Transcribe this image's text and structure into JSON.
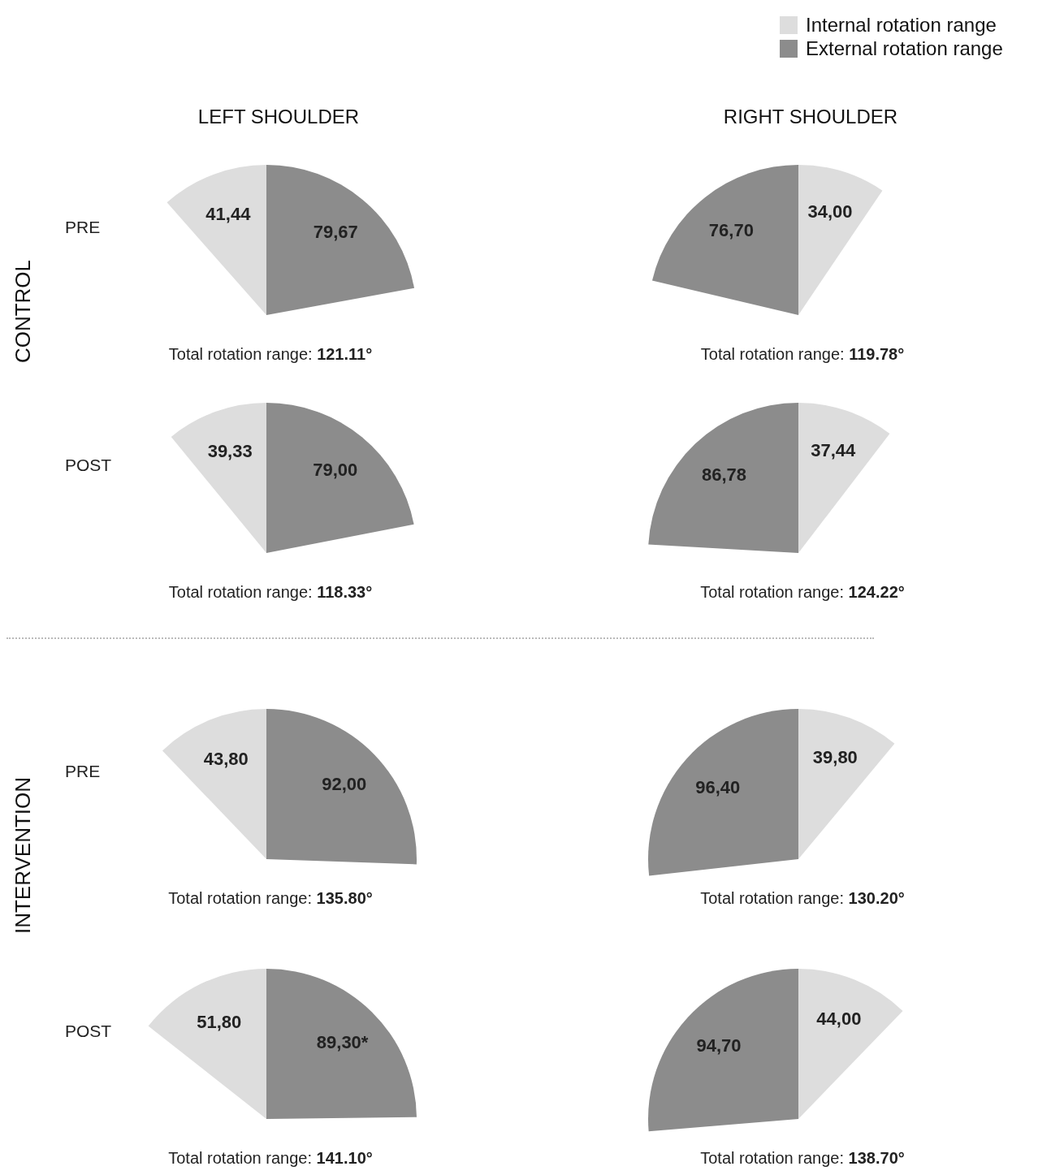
{
  "chart_data": [
    {
      "type": "pie",
      "title": "LEFT SHOULDER",
      "annotations": [
        "PRE",
        "CONTROL"
      ],
      "xlabel": "Total rotation range: 121.11°",
      "categories": [
        "Internal rotation range",
        "External rotation range"
      ],
      "values": [
        41.44,
        79.67
      ],
      "value_labels": [
        "41,44",
        "79,67"
      ],
      "colors": [
        "#dddddd",
        "#8c8c8c"
      ],
      "legend": "top right"
    },
    {
      "type": "pie",
      "title": "RIGHT SHOULDER",
      "xlabel": "Total rotation range: 119.78°",
      "categories": [
        null,
        null
      ],
      "values": [
        76.7,
        34.0
      ],
      "value_labels": [
        "76,70",
        "34,00"
      ],
      "colors": [
        "#8c8c8c",
        "#dddddd"
      ]
    },
    {
      "type": "pie",
      "annotations": [
        "POST"
      ],
      "xlabel": "Total rotation range: 118.33°",
      "categories": [
        null,
        null
      ],
      "values": [
        39.33,
        79.0
      ],
      "value_labels": [
        "39,33",
        "79,00"
      ],
      "colors": [
        "#dddddd",
        "#8c8c8c"
      ]
    },
    {
      "type": "pie",
      "xlabel": "Total rotation range: 124.22°",
      "categories": [
        null,
        null
      ],
      "values": [
        86.78,
        37.44
      ],
      "value_labels": [
        "86,78",
        "37,44"
      ],
      "colors": [
        "#8c8c8c",
        "#dddddd"
      ]
    },
    {
      "type": "pie",
      "annotations": [
        "PRE",
        "INTERVENTION"
      ],
      "xlabel": "Total rotation range: 135.80°",
      "categories": [
        null,
        null
      ],
      "values": [
        43.8,
        92.0
      ],
      "value_labels": [
        "43,80",
        "92,00"
      ],
      "colors": [
        "#dddddd",
        "#8c8c8c"
      ]
    },
    {
      "type": "pie",
      "xlabel": "Total rotation range: 130.20°",
      "categories": [
        null,
        null
      ],
      "values": [
        96.4,
        39.8
      ],
      "value_labels": [
        "96,40",
        "39,80"
      ],
      "colors": [
        "#8c8c8c",
        "#dddddd"
      ]
    },
    {
      "type": "pie",
      "annotations": [
        "POST"
      ],
      "xlabel": "Total rotation range: 141.10°",
      "categories": [
        null,
        null
      ],
      "values": [
        51.8,
        89.3
      ],
      "value_labels": [
        "51,80",
        "89,30*"
      ],
      "colors": [
        "#dddddd",
        "#8c8c8c"
      ]
    },
    {
      "type": "pie",
      "xlabel": "Total rotation range: 138.70°",
      "categories": [
        null,
        null
      ],
      "values": [
        94.7,
        44.0
      ],
      "value_labels": [
        "94,70",
        "44,00"
      ],
      "colors": [
        "#8c8c8c",
        "#dddddd"
      ]
    }
  ]
}
